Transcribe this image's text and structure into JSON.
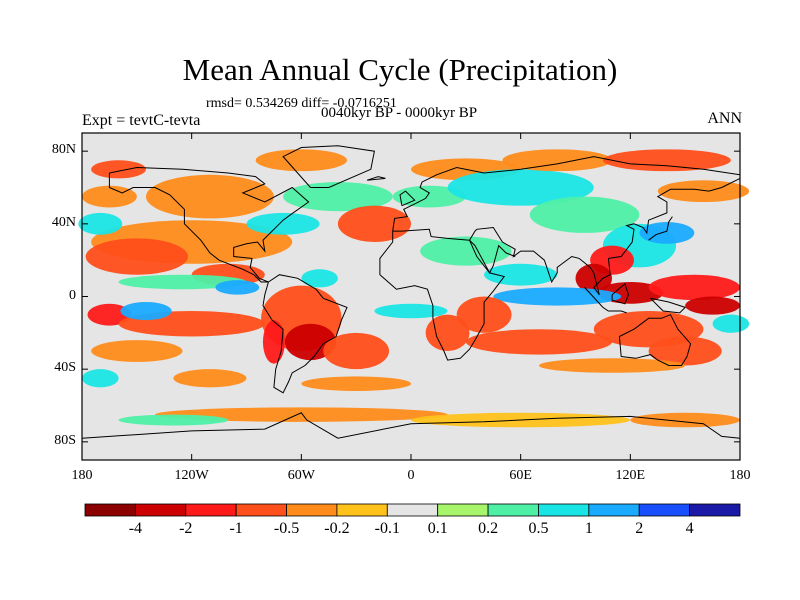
{
  "title": "Mean Annual Cycle (Precipitation)",
  "stats_line": "rmsd= 0.534269 diff= -0.0716251",
  "period": "0040kyr BP - 0000kyr BP",
  "experiment": "Expt = tevtC-tevta",
  "season": "ANN",
  "lat_ticks": [
    "80N",
    "40N",
    "0",
    "40S",
    "80S"
  ],
  "lon_ticks": [
    "180",
    "120W",
    "60W",
    "0",
    "60E",
    "120E",
    "180"
  ],
  "colorbar": {
    "colors": [
      "#8b0000",
      "#cc0000",
      "#ff1a1a",
      "#ff4f1a",
      "#ff8c1a",
      "#ffc21a",
      "#e5e5e5",
      "#a6f56b",
      "#4ef0a6",
      "#1ae5e5",
      "#1aaaff",
      "#1a4fff",
      "#1a1aa6"
    ],
    "labels": [
      "-4",
      "-2",
      "-1",
      "-0.5",
      "-0.2",
      "-0.1",
      "0.1",
      "0.2",
      "0.5",
      "1",
      "2",
      "4"
    ]
  }
}
